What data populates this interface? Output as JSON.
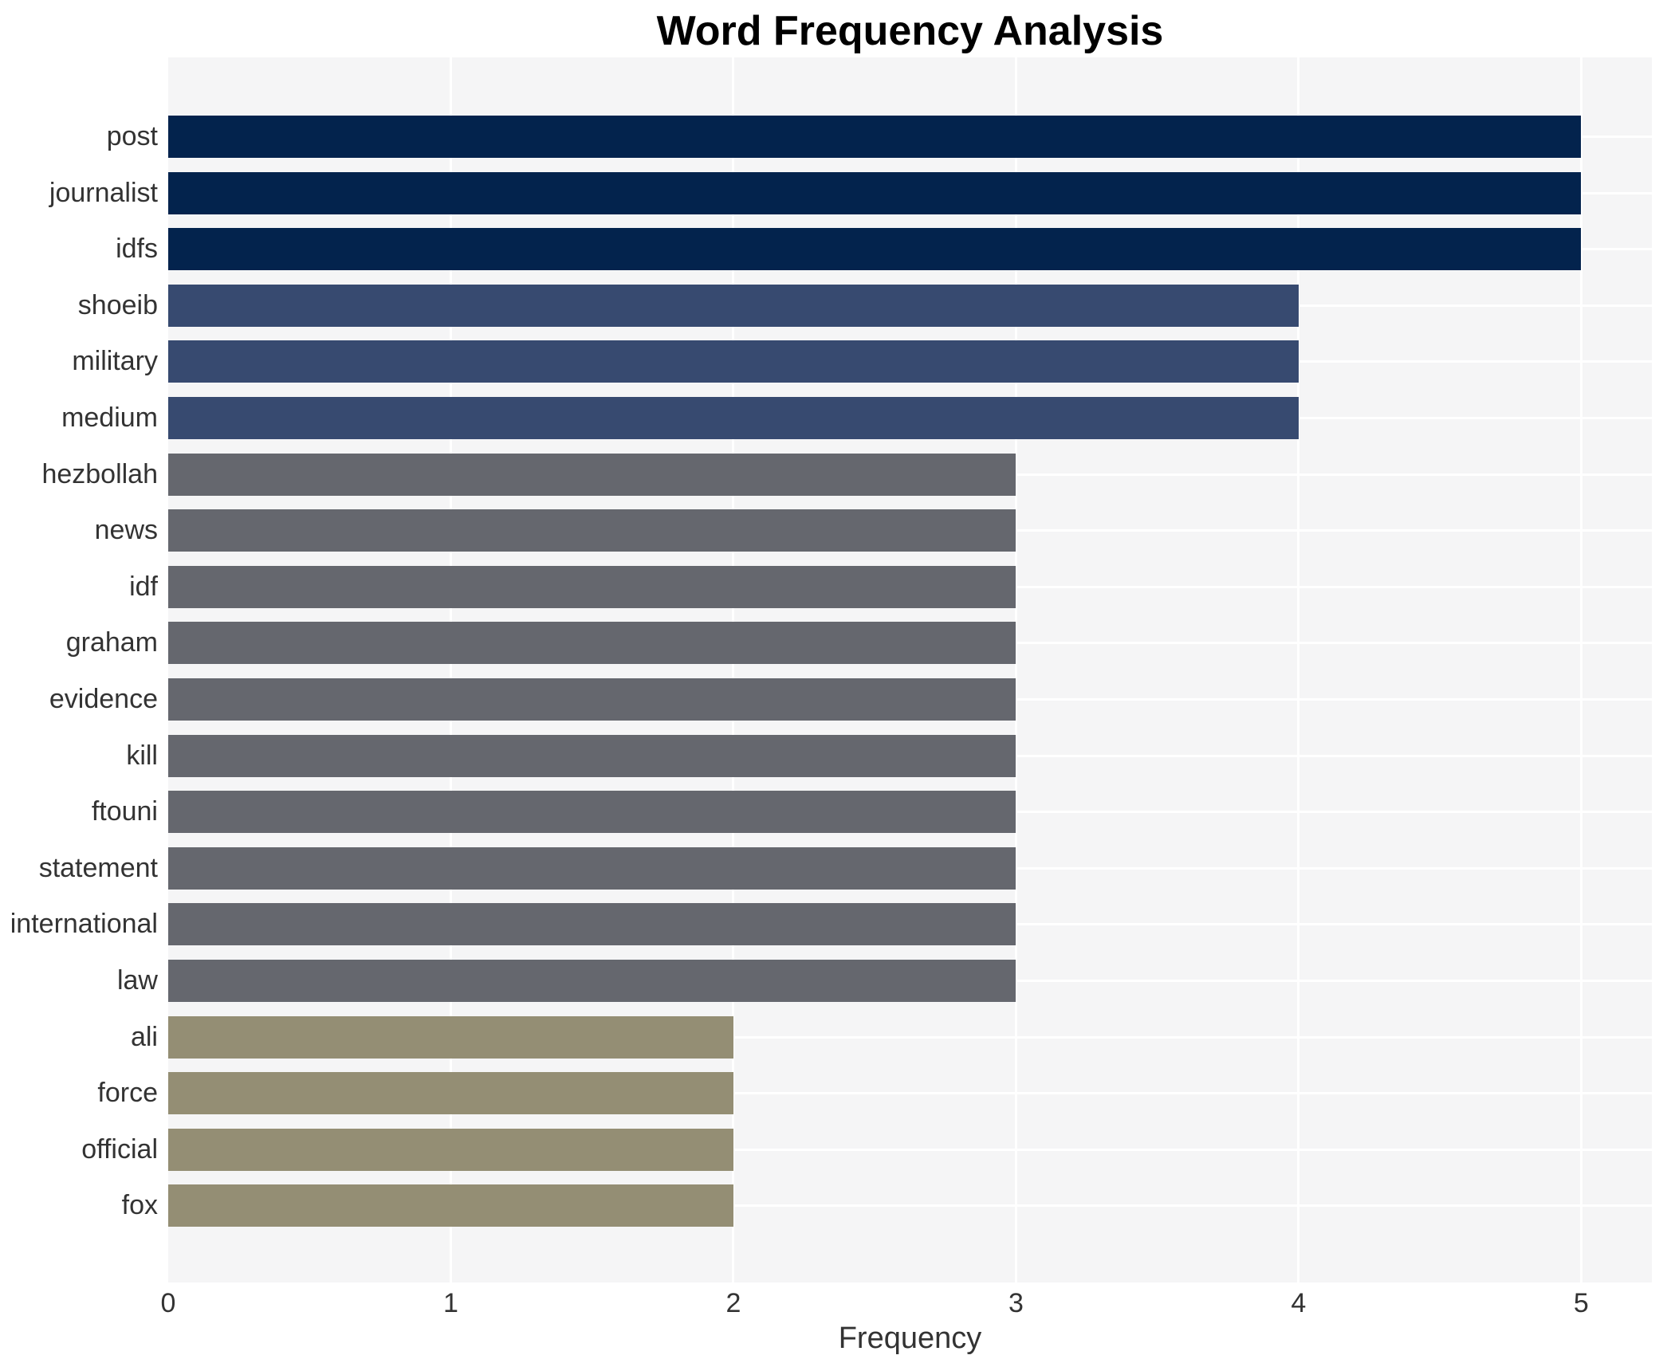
{
  "chart_data": {
    "type": "bar",
    "orientation": "horizontal",
    "title": "Word Frequency Analysis",
    "xlabel": "Frequency",
    "ylabel": "",
    "categories": [
      "post",
      "journalist",
      "idfs",
      "shoeib",
      "military",
      "medium",
      "hezbollah",
      "news",
      "idf",
      "graham",
      "evidence",
      "kill",
      "ftouni",
      "statement",
      "international",
      "law",
      "ali",
      "force",
      "official",
      "fox"
    ],
    "values": [
      5,
      5,
      5,
      4,
      4,
      4,
      3,
      3,
      3,
      3,
      3,
      3,
      3,
      3,
      3,
      3,
      2,
      2,
      2,
      2
    ],
    "xticks": [
      0,
      1,
      2,
      3,
      4,
      5
    ],
    "xlim": [
      0,
      5.25
    ],
    "grid": true,
    "legend": "none",
    "plot_bg_color": "#f5f5f6",
    "grid_color": "#ffffff",
    "title_color": "#000000",
    "tick_color": "#333333",
    "value_colors": {
      "5": "#03234d",
      "4": "#374a70",
      "3": "#65676e",
      "2": "#948e74"
    }
  }
}
